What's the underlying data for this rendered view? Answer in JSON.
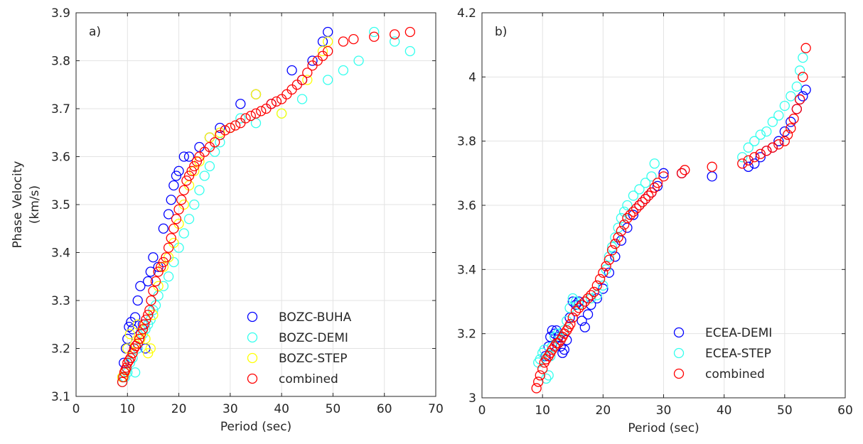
{
  "chart_data": [
    {
      "type": "scatter",
      "panel_label": "a)",
      "xlabel": "Period (sec)",
      "ylabel": "Phase Velocity\n(km/s)",
      "xlim": [
        0,
        70
      ],
      "ylim": [
        3.1,
        3.9
      ],
      "xticks": [
        0,
        10,
        20,
        30,
        40,
        50,
        60,
        70
      ],
      "yticks": [
        3.1,
        3.2,
        3.3,
        3.4,
        3.5,
        3.6,
        3.7,
        3.8,
        3.9
      ],
      "xtick_labels": [
        "0",
        "10",
        "20",
        "30",
        "40",
        "50",
        "60",
        "70"
      ],
      "ytick_labels": [
        "3.1",
        "3.2",
        "3.3",
        "3.4",
        "3.5",
        "3.6",
        "3.7",
        "3.8",
        "3.9"
      ],
      "grid": true,
      "legend_position": "bottom-right",
      "series": [
        {
          "name": "BOZC-BUHA",
          "color": "#0000ff",
          "x": [
            9,
            9.3,
            9.7,
            10,
            10.3,
            10.7,
            11,
            11.5,
            12,
            12.5,
            13,
            13.5,
            14,
            14.5,
            15,
            16,
            17,
            18,
            18.5,
            19,
            19.5,
            20,
            21,
            22,
            24,
            26,
            28,
            32,
            35,
            38,
            42,
            44,
            46,
            48,
            49
          ],
          "y": [
            3.14,
            3.17,
            3.2,
            3.22,
            3.245,
            3.255,
            3.24,
            3.265,
            3.3,
            3.33,
            3.25,
            3.2,
            3.34,
            3.36,
            3.39,
            3.37,
            3.45,
            3.48,
            3.51,
            3.54,
            3.56,
            3.57,
            3.6,
            3.6,
            3.62,
            3.64,
            3.66,
            3.71,
            3.73,
            3.71,
            3.78,
            3.76,
            3.8,
            3.84,
            3.86
          ]
        },
        {
          "name": "BOZC-DEMI",
          "color": "#33ffee",
          "x": [
            9,
            9.5,
            10,
            10.5,
            11,
            11.5,
            12,
            12.5,
            13,
            13.5,
            14,
            14.5,
            15,
            15.5,
            16,
            17,
            18,
            19,
            20,
            21,
            22,
            23,
            24,
            25,
            26,
            27,
            28,
            30,
            32,
            35,
            40,
            44,
            49,
            52,
            55,
            58,
            62,
            65
          ],
          "y": [
            3.13,
            3.14,
            3.15,
            3.17,
            3.18,
            3.15,
            3.2,
            3.22,
            3.23,
            3.24,
            3.25,
            3.26,
            3.28,
            3.29,
            3.31,
            3.33,
            3.35,
            3.38,
            3.41,
            3.44,
            3.47,
            3.5,
            3.53,
            3.56,
            3.58,
            3.61,
            3.63,
            3.66,
            3.68,
            3.67,
            3.69,
            3.72,
            3.76,
            3.78,
            3.8,
            3.86,
            3.84,
            3.82
          ]
        },
        {
          "name": "BOZC-STEP",
          "color": "#ffff00",
          "x": [
            9,
            9.5,
            10,
            10.5,
            11,
            11.5,
            12,
            12.5,
            13,
            13.5,
            14,
            14.5,
            15,
            16,
            17,
            18,
            19,
            20,
            21,
            22,
            23,
            24,
            26,
            28,
            30,
            35,
            40,
            45,
            48,
            49
          ],
          "y": [
            3.14,
            3.15,
            3.2,
            3.23,
            3.19,
            3.21,
            3.25,
            3.22,
            3.24,
            3.22,
            3.19,
            3.2,
            3.27,
            3.33,
            3.37,
            3.39,
            3.42,
            3.46,
            3.5,
            3.54,
            3.57,
            3.59,
            3.64,
            3.65,
            3.66,
            3.73,
            3.69,
            3.76,
            3.82,
            3.84
          ]
        },
        {
          "name": "combined",
          "color": "#ff0000",
          "x": [
            9,
            9.2,
            9.4,
            9.6,
            9.8,
            10,
            10.3,
            10.6,
            11,
            11.3,
            11.6,
            12,
            12.3,
            12.6,
            13,
            13.3,
            13.6,
            14,
            14.3,
            14.6,
            15,
            15.5,
            16,
            16.5,
            17,
            17.5,
            18,
            18.5,
            19,
            19.5,
            20,
            20.5,
            21,
            21.5,
            22,
            22.5,
            23,
            23.5,
            24,
            25,
            26,
            27,
            28,
            29,
            30,
            31,
            32,
            33,
            34,
            35,
            36,
            37,
            38,
            39,
            40,
            41,
            42,
            43,
            44,
            45,
            46,
            47,
            48,
            49,
            52,
            54,
            58,
            62,
            65
          ],
          "y": [
            3.13,
            3.14,
            3.15,
            3.155,
            3.16,
            3.17,
            3.175,
            3.18,
            3.19,
            3.2,
            3.205,
            3.21,
            3.22,
            3.23,
            3.24,
            3.25,
            3.26,
            3.27,
            3.28,
            3.3,
            3.32,
            3.34,
            3.36,
            3.37,
            3.38,
            3.39,
            3.41,
            3.43,
            3.45,
            3.47,
            3.49,
            3.51,
            3.53,
            3.55,
            3.56,
            3.57,
            3.58,
            3.59,
            3.6,
            3.61,
            3.62,
            3.63,
            3.645,
            3.655,
            3.66,
            3.665,
            3.67,
            3.68,
            3.685,
            3.69,
            3.695,
            3.7,
            3.71,
            3.715,
            3.72,
            3.73,
            3.74,
            3.75,
            3.76,
            3.775,
            3.79,
            3.8,
            3.81,
            3.82,
            3.84,
            3.845,
            3.85,
            3.855,
            3.86
          ]
        }
      ]
    },
    {
      "type": "scatter",
      "panel_label": "b)",
      "xlabel": "Period (sec)",
      "ylabel": "",
      "xlim": [
        0,
        60
      ],
      "ylim": [
        3,
        4.2
      ],
      "xticks": [
        0,
        10,
        20,
        30,
        40,
        50,
        60
      ],
      "yticks": [
        3,
        3.2,
        3.4,
        3.6,
        3.8,
        4,
        4.2
      ],
      "xtick_labels": [
        "0",
        "10",
        "20",
        "30",
        "40",
        "50",
        "60"
      ],
      "ytick_labels": [
        "3",
        "3.2",
        "3.4",
        "3.6",
        "3.8",
        "4",
        "4.2"
      ],
      "grid": true,
      "legend_position": "bottom-right",
      "series": [
        {
          "name": "ECEA-DEMI",
          "color": "#0000ff",
          "x": [
            10.5,
            11,
            11.3,
            11.6,
            12,
            12.3,
            12.6,
            13,
            13.3,
            13.6,
            14,
            14.5,
            15,
            15.5,
            16,
            16.5,
            17,
            17.5,
            18,
            19,
            20,
            21,
            22,
            23,
            24,
            25,
            26,
            27,
            28,
            29,
            30,
            33,
            38,
            44,
            45,
            46,
            47,
            48,
            49,
            50,
            51,
            52,
            52.5,
            53,
            53.5
          ],
          "y": [
            3.13,
            3.16,
            3.19,
            3.21,
            3.2,
            3.21,
            3.19,
            3.16,
            3.14,
            3.15,
            3.18,
            3.25,
            3.3,
            3.29,
            3.3,
            3.24,
            3.22,
            3.26,
            3.29,
            3.31,
            3.34,
            3.39,
            3.44,
            3.49,
            3.53,
            3.57,
            3.6,
            3.62,
            3.64,
            3.66,
            3.7,
            3.7,
            3.69,
            3.72,
            3.73,
            3.75,
            3.77,
            3.78,
            3.8,
            3.83,
            3.86,
            3.9,
            3.93,
            3.94,
            3.96
          ]
        },
        {
          "name": "ECEA-STEP",
          "color": "#33ffee",
          "x": [
            9.3,
            9.6,
            10,
            10.3,
            10.6,
            11,
            11.3,
            11.6,
            12,
            12.5,
            13,
            13.5,
            14,
            14.5,
            15,
            15.5,
            16,
            17,
            18,
            19,
            20,
            20.5,
            21,
            21.5,
            22,
            22.5,
            23,
            23.5,
            24,
            25,
            26,
            27,
            28,
            28.5,
            43,
            44,
            45,
            46,
            47,
            48,
            49,
            50,
            51,
            52,
            52.5,
            53
          ],
          "y": [
            3.11,
            3.12,
            3.14,
            3.15,
            3.06,
            3.07,
            3.13,
            3.16,
            3.19,
            3.2,
            3.18,
            3.21,
            3.24,
            3.28,
            3.31,
            3.3,
            3.29,
            3.3,
            3.31,
            3.32,
            3.35,
            3.4,
            3.44,
            3.47,
            3.5,
            3.53,
            3.56,
            3.58,
            3.6,
            3.63,
            3.65,
            3.67,
            3.69,
            3.73,
            3.75,
            3.78,
            3.8,
            3.82,
            3.83,
            3.86,
            3.88,
            3.91,
            3.94,
            3.97,
            4.02,
            4.06
          ]
        },
        {
          "name": "combined",
          "color": "#ff0000",
          "x": [
            9,
            9.3,
            9.6,
            10,
            10.3,
            10.6,
            11,
            11.3,
            11.6,
            12,
            12.3,
            12.6,
            13,
            13.3,
            13.6,
            14,
            14.3,
            14.6,
            15,
            15.5,
            16,
            16.5,
            17,
            17.5,
            18,
            18.5,
            19,
            19.5,
            20,
            20.5,
            21,
            21.5,
            22,
            22.5,
            23,
            23.5,
            24,
            24.5,
            25,
            25.5,
            26,
            26.5,
            27,
            27.5,
            28,
            28.5,
            29,
            30,
            33,
            33.5,
            38,
            43,
            44,
            45,
            46,
            47,
            48,
            49,
            50,
            50.5,
            51,
            51.5,
            52,
            52.5,
            53,
            53.5
          ],
          "y": [
            3.03,
            3.05,
            3.07,
            3.09,
            3.11,
            3.12,
            3.13,
            3.14,
            3.15,
            3.16,
            3.17,
            3.17,
            3.18,
            3.19,
            3.2,
            3.21,
            3.22,
            3.23,
            3.25,
            3.27,
            3.28,
            3.29,
            3.3,
            3.31,
            3.32,
            3.33,
            3.35,
            3.37,
            3.39,
            3.41,
            3.43,
            3.46,
            3.48,
            3.5,
            3.52,
            3.54,
            3.56,
            3.57,
            3.58,
            3.59,
            3.6,
            3.61,
            3.62,
            3.63,
            3.64,
            3.655,
            3.67,
            3.69,
            3.7,
            3.71,
            3.72,
            3.73,
            3.74,
            3.75,
            3.76,
            3.77,
            3.78,
            3.79,
            3.8,
            3.82,
            3.84,
            3.87,
            3.9,
            3.93,
            4,
            4.09
          ]
        }
      ]
    }
  ]
}
